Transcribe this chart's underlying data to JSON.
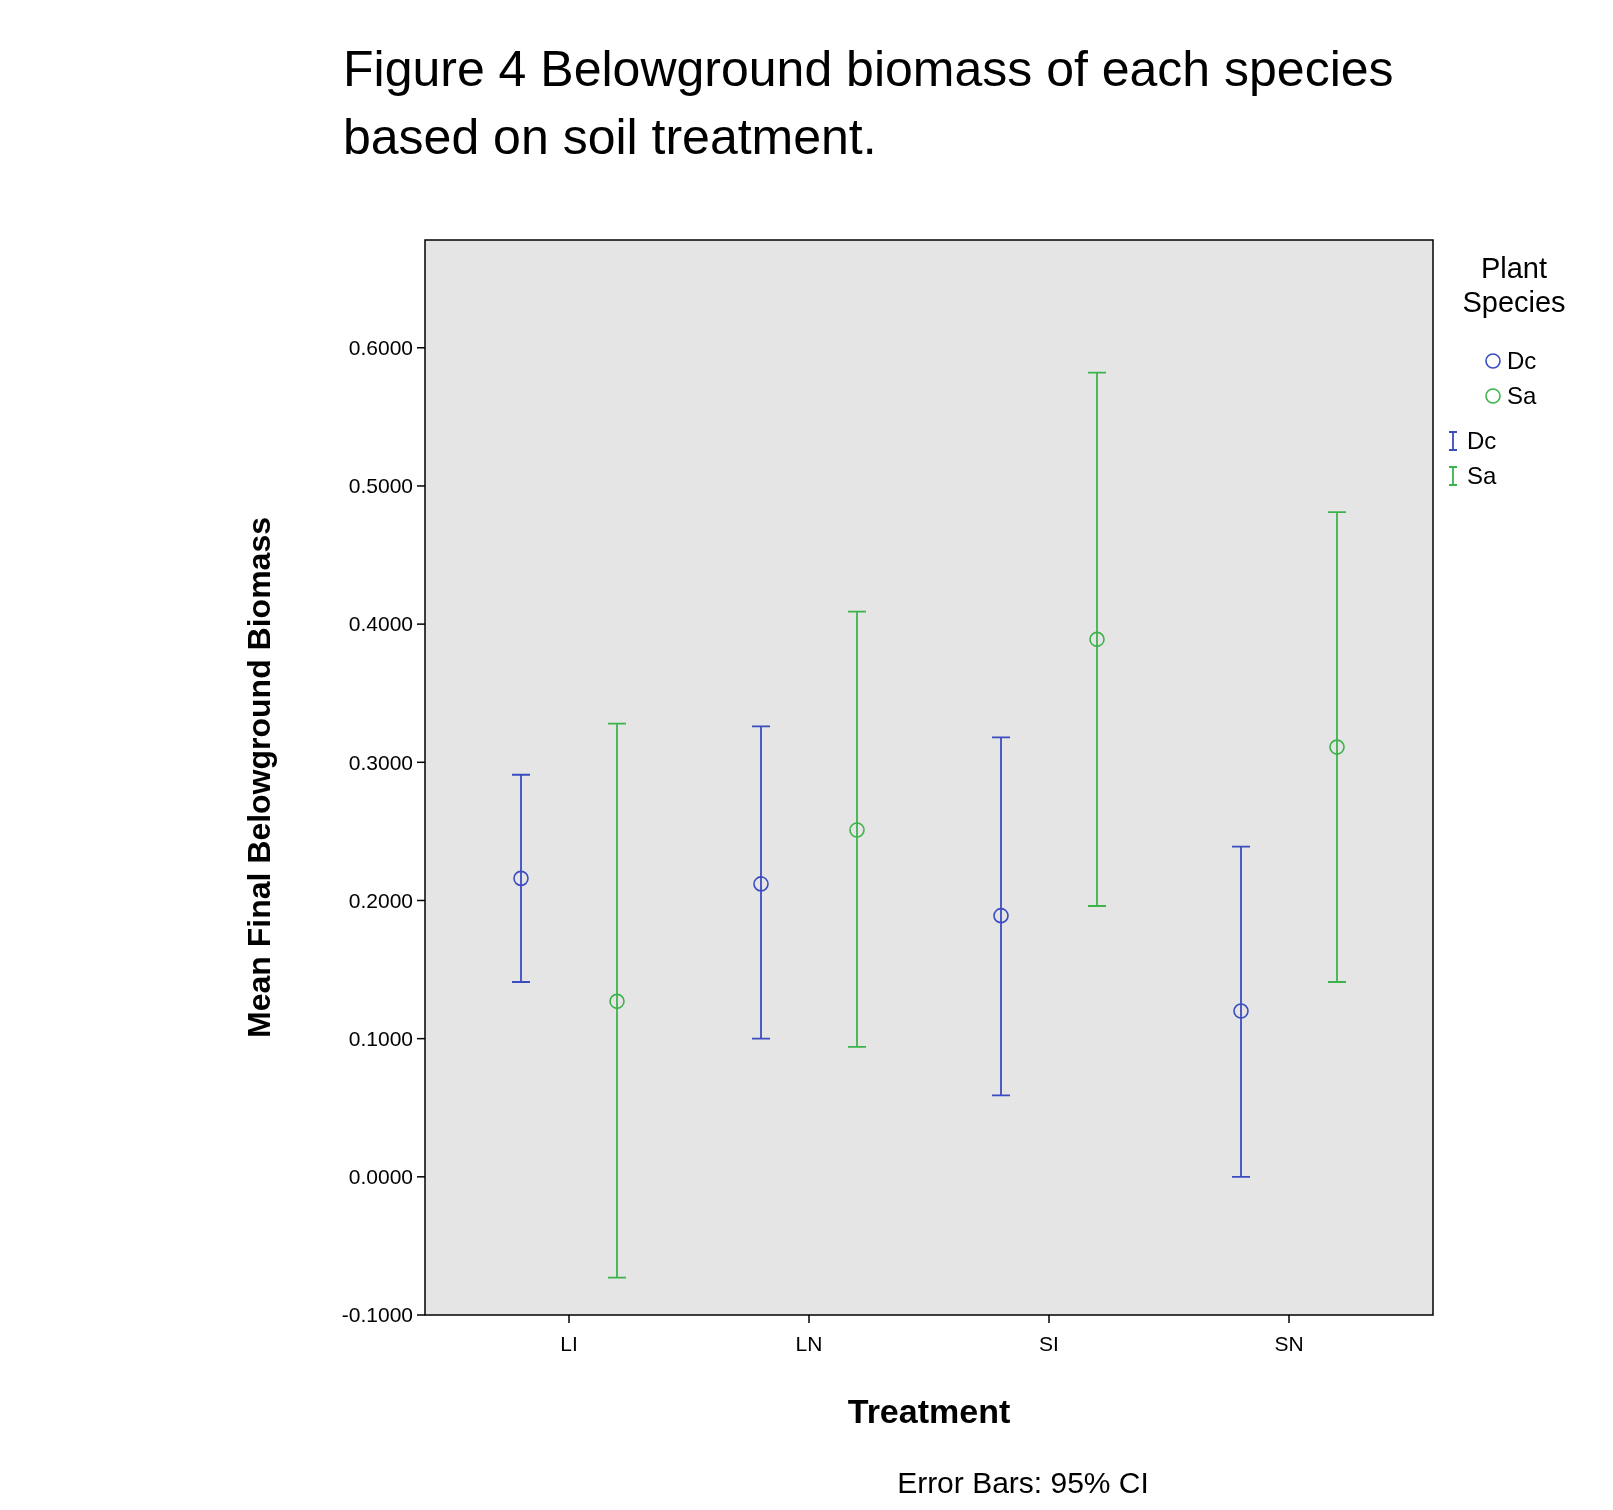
{
  "chart_data": {
    "type": "scatter",
    "title": "Figure 4 Belowground biomass of each species based on soil treatment.",
    "xlabel": "Treatment",
    "ylabel": "Mean Final Belowground Biomass",
    "legend_title": "Plant Species",
    "categories": [
      "LI",
      "LN",
      "SI",
      "SN"
    ],
    "series": [
      {
        "name": "Dc",
        "color": "#3b4cc0",
        "values": [
          0.216,
          0.212,
          0.189,
          0.12
        ],
        "errors": [
          [
            0.141,
            0.291
          ],
          [
            0.1,
            0.326
          ],
          [
            0.059,
            0.318
          ],
          [
            0.0,
            0.239
          ]
        ]
      },
      {
        "name": "Sa",
        "color": "#3cb34a",
        "values": [
          0.127,
          0.251,
          0.389,
          0.311
        ],
        "errors": [
          [
            -0.073,
            0.328
          ],
          [
            0.094,
            0.409
          ],
          [
            0.196,
            0.582
          ],
          [
            0.141,
            0.481
          ]
        ]
      }
    ],
    "ylim": [
      -0.1,
      0.678
    ],
    "yticks": [
      {
        "value": -0.1,
        "label": "-0.1000"
      },
      {
        "value": 0,
        "label": "0.0000"
      },
      {
        "value": 0.1,
        "label": "0.1000"
      },
      {
        "value": 0.2,
        "label": "0.2000"
      },
      {
        "value": 0.3,
        "label": "0.3000"
      },
      {
        "value": 0.4,
        "label": "0.4000"
      },
      {
        "value": 0.5,
        "label": "0.5000"
      },
      {
        "value": 0.6,
        "label": "0.6000"
      }
    ],
    "marker": "circle",
    "grid": false,
    "legend": "top right",
    "annotations": [
      "Error Bars: 95% CI"
    ]
  }
}
